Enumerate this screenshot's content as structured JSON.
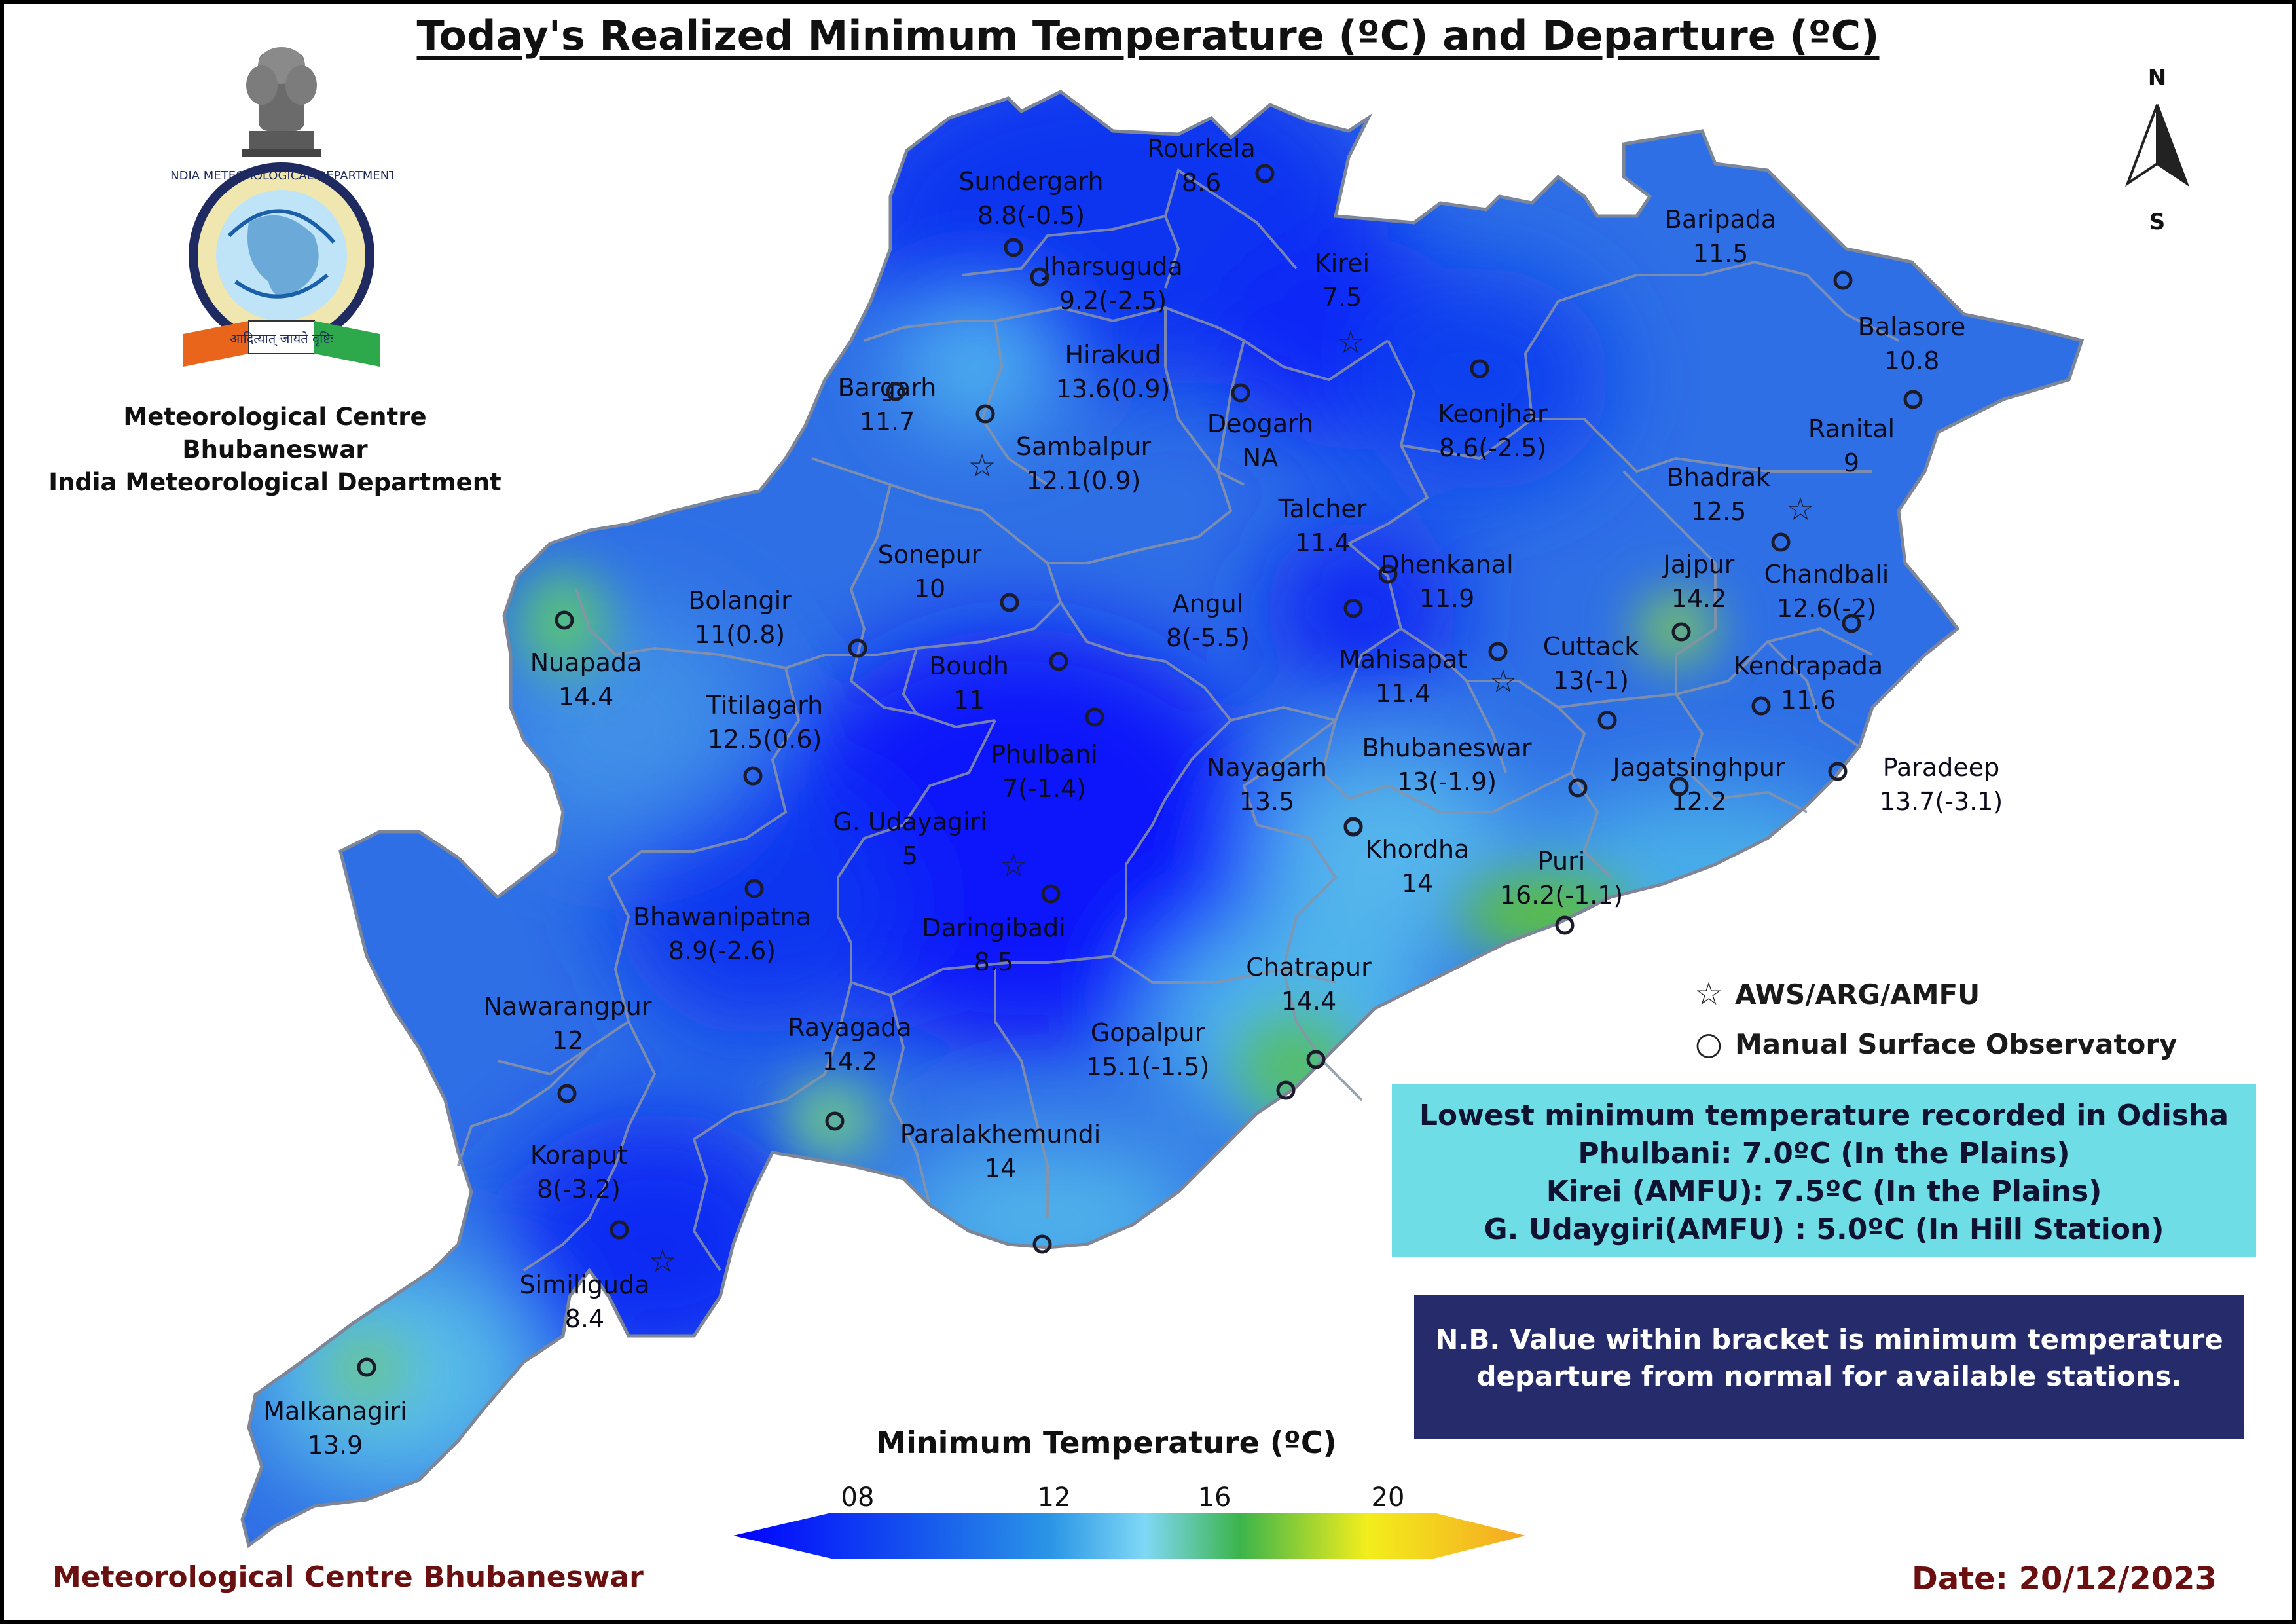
{
  "title": "Today's Realized Minimum Temperature (ºC) and Departure (ºC)",
  "organization": {
    "line1": "Meteorological Centre Bhubaneswar",
    "line2": "India Meteorological Department",
    "emblem_text": "आदित्यात् जायते वृष्टिः",
    "emblem_ring_text": "INDIA METEOROLOGICAL DEPARTMENT"
  },
  "compass": {
    "north": "N",
    "south": "S"
  },
  "legend": {
    "aws": {
      "icon": "star-icon",
      "label": "AWS/ARG/AMFU"
    },
    "manual": {
      "icon": "circle-icon",
      "label": "Manual Surface Observatory"
    }
  },
  "lowest_box": {
    "heading": "Lowest minimum temperature recorded in Odisha",
    "line1": "Phulbani: 7.0ºC (In the Plains)",
    "line2": "Kirei (AMFU): 7.5ºC (In the Plains)",
    "line3": "G. Udaygiri(AMFU) : 5.0ºC (In Hill Station)",
    "background": "#6fdde5"
  },
  "note": {
    "line1": "N.B. Value within bracket is minimum temperature",
    "line2": "departure from normal for available stations.",
    "background": "#262b6c"
  },
  "colorbar": {
    "title": "Minimum Temperature (ºC)",
    "ticks": [
      "08",
      "12",
      "16",
      "20"
    ],
    "colors": [
      "#0000ff",
      "#1f6fe6",
      "#4fc3f7",
      "#3cb44b",
      "#f3ee1c",
      "#f5a623"
    ]
  },
  "footer": {
    "left": "Meteorological Centre Bhubaneswar",
    "right": "Date: 20/12/2023"
  },
  "stations": [
    {
      "name": "Sundergarh",
      "value": "8.8(-0.5)",
      "type": "manual"
    },
    {
      "name": "Rourkela",
      "value": "8.6",
      "type": "manual"
    },
    {
      "name": "Jharsuguda",
      "value": "9.2(-2.5)",
      "type": "manual"
    },
    {
      "name": "Kirei",
      "value": "7.5",
      "type": "aws"
    },
    {
      "name": "Baripada",
      "value": "11.5",
      "type": "manual"
    },
    {
      "name": "Balasore",
      "value": "10.8",
      "type": "manual"
    },
    {
      "name": "Hirakud",
      "value": "13.6(0.9)",
      "type": "manual"
    },
    {
      "name": "Bargarh",
      "value": "11.7",
      "type": "manual"
    },
    {
      "name": "Deogarh",
      "value": "NA",
      "type": "manual"
    },
    {
      "name": "Keonjhar",
      "value": "8.6(-2.5)",
      "type": "manual"
    },
    {
      "name": "Ranital",
      "value": "9",
      "type": "aws"
    },
    {
      "name": "Sambalpur",
      "value": "12.1(0.9)",
      "type": "aws"
    },
    {
      "name": "Bhadrak",
      "value": "12.5",
      "type": "manual"
    },
    {
      "name": "Talcher",
      "value": "11.4",
      "type": "manual"
    },
    {
      "name": "Dhenkanal",
      "value": "11.9",
      "type": "manual"
    },
    {
      "name": "Jajpur",
      "value": "14.2",
      "type": "manual"
    },
    {
      "name": "Chandbali",
      "value": "12.6(-2)",
      "type": "manual"
    },
    {
      "name": "Sonepur",
      "value": "10",
      "type": "manual"
    },
    {
      "name": "Bolangir",
      "value": "11(0.8)",
      "type": "manual"
    },
    {
      "name": "Angul",
      "value": "8(-5.5)",
      "type": "manual"
    },
    {
      "name": "Nuapada",
      "value": "14.4",
      "type": "manual"
    },
    {
      "name": "Boudh",
      "value": "11",
      "type": "manual"
    },
    {
      "name": "Mahisapat",
      "value": "11.4",
      "type": "aws"
    },
    {
      "name": "Cuttack",
      "value": "13(-1)",
      "type": "manual"
    },
    {
      "name": "Kendrapada",
      "value": "11.6",
      "type": "manual"
    },
    {
      "name": "Titilagarh",
      "value": "12.5(0.6)",
      "type": "manual"
    },
    {
      "name": "Phulbani",
      "value": "7(-1.4)",
      "type": "manual"
    },
    {
      "name": "Nayagarh",
      "value": "13.5",
      "type": "manual"
    },
    {
      "name": "Bhubaneswar",
      "value": "13(-1.9)",
      "type": "manual"
    },
    {
      "name": "Jagatsinghpur",
      "value": "12.2",
      "type": "manual"
    },
    {
      "name": "Paradeep",
      "value": "13.7(-3.1)",
      "type": "manual"
    },
    {
      "name": "G. Udayagiri",
      "value": "5",
      "type": "aws"
    },
    {
      "name": "Khordha",
      "value": "14",
      "type": "manual"
    },
    {
      "name": "Bhawanipatna",
      "value": "8.9(-2.6)",
      "type": "manual"
    },
    {
      "name": "Daringibadi",
      "value": "8.5",
      "type": "manual"
    },
    {
      "name": "Puri",
      "value": "16.2(-1.1)",
      "type": "manual"
    },
    {
      "name": "Chatrapur",
      "value": "14.4",
      "type": "manual"
    },
    {
      "name": "Nawarangpur",
      "value": "12",
      "type": "manual"
    },
    {
      "name": "Rayagada",
      "value": "14.2",
      "type": "manual"
    },
    {
      "name": "Gopalpur",
      "value": "15.1(-1.5)",
      "type": "manual"
    },
    {
      "name": "Paralakhemundi",
      "value": "14",
      "type": "manual"
    },
    {
      "name": "Koraput",
      "value": "8(-3.2)",
      "type": "manual"
    },
    {
      "name": "Similiguda",
      "value": "8.4",
      "type": "aws"
    },
    {
      "name": "Malkanagiri",
      "value": "13.9",
      "type": "manual"
    }
  ]
}
